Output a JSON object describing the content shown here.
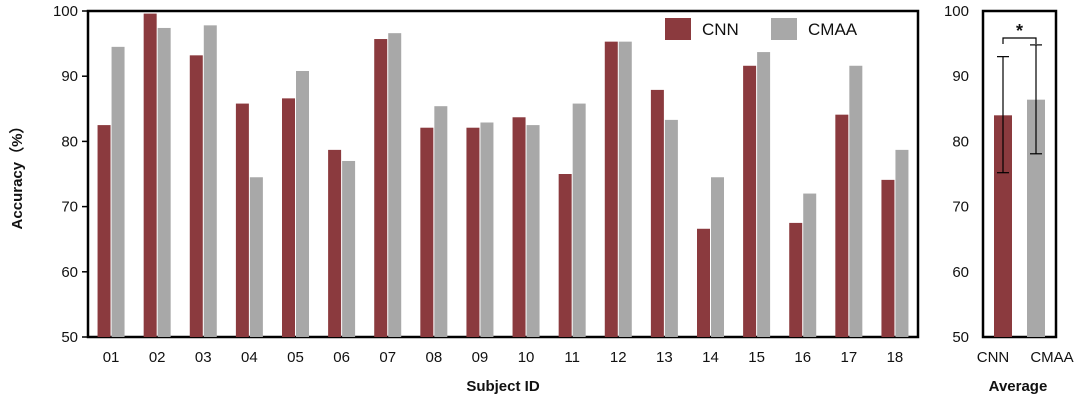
{
  "chart_data": [
    {
      "type": "bar",
      "xlabel": "Subject ID",
      "ylabel": "Accuracy（%）",
      "ylim": [
        50,
        100
      ],
      "yticks": [
        "50",
        "60",
        "70",
        "80",
        "90",
        "100"
      ],
      "categories": [
        "01",
        "02",
        "03",
        "04",
        "05",
        "06",
        "07",
        "08",
        "09",
        "10",
        "11",
        "12",
        "13",
        "14",
        "15",
        "16",
        "17",
        "18"
      ],
      "series": [
        {
          "name": "CNN",
          "color": "#8b3a3e",
          "values": [
            82.5,
            99.6,
            93.2,
            85.8,
            86.6,
            78.7,
            95.7,
            82.1,
            82.1,
            83.7,
            75.0,
            95.3,
            87.9,
            66.6,
            91.6,
            67.5,
            84.1,
            74.1
          ]
        },
        {
          "name": "CMAA",
          "color": "#a8a8a8",
          "values": [
            94.5,
            97.4,
            97.8,
            74.5,
            90.8,
            77.0,
            96.6,
            85.4,
            82.9,
            82.5,
            85.8,
            95.3,
            83.3,
            74.5,
            93.7,
            72.0,
            91.6,
            78.7
          ]
        }
      ],
      "legend": {
        "placement": "top-right",
        "items": [
          "CNN",
          "CMAA"
        ]
      },
      "grid": false
    },
    {
      "type": "bar",
      "xlabel": "Average",
      "ylim": [
        50,
        100
      ],
      "yticks": [
        "50",
        "60",
        "70",
        "80",
        "90",
        "100"
      ],
      "categories": [
        "CNN",
        "CMAA"
      ],
      "values": [
        84.0,
        86.4
      ],
      "error": [
        [
          75.2,
          93.0
        ],
        [
          78.1,
          94.8
        ]
      ],
      "colors": [
        "#8b3a3e",
        "#a8a8a8"
      ],
      "significance": "*"
    }
  ]
}
